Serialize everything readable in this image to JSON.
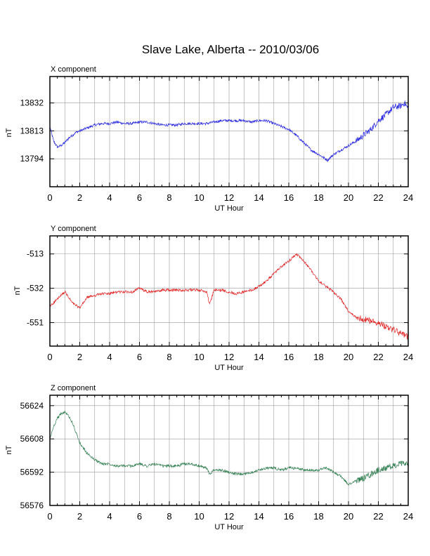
{
  "figure": {
    "title": "Slave Lake, Alberta -- 2010/03/06"
  },
  "chart_data": [
    {
      "type": "line",
      "title": "X component",
      "xlabel": "UT Hour",
      "ylabel": "nT",
      "xlim": [
        0,
        24
      ],
      "ylim": [
        13775,
        13850
      ],
      "xticks": [
        0,
        2,
        4,
        6,
        8,
        10,
        12,
        14,
        16,
        18,
        20,
        22,
        24
      ],
      "yticks": [
        13794,
        13813,
        13832
      ],
      "color": "#2020e0",
      "grid": true,
      "x": [
        0,
        0.25,
        0.5,
        0.75,
        1.0,
        1.25,
        1.5,
        1.75,
        2.0,
        2.5,
        3.0,
        3.5,
        4.0,
        4.5,
        5.0,
        5.5,
        6.0,
        6.5,
        7.0,
        7.5,
        8.0,
        8.5,
        9.0,
        9.5,
        10.0,
        10.5,
        11.0,
        11.5,
        12.0,
        12.5,
        13.0,
        13.5,
        14.0,
        14.5,
        15.0,
        15.5,
        16.0,
        16.5,
        17.0,
        17.5,
        18.0,
        18.3,
        18.6,
        19.0,
        19.5,
        20.0,
        20.5,
        21.0,
        21.5,
        22.0,
        22.5,
        23.0,
        23.5,
        23.75,
        24.0
      ],
      "y": [
        13816,
        13806,
        13802,
        13803,
        13805,
        13808,
        13810,
        13812,
        13813,
        13815,
        13817,
        13818,
        13818,
        13819,
        13818,
        13818,
        13819,
        13819,
        13818,
        13817,
        13817,
        13817,
        13818,
        13818,
        13818,
        13818,
        13819,
        13820,
        13820,
        13820,
        13820,
        13819,
        13820,
        13820,
        13818,
        13816,
        13814,
        13810,
        13805,
        13800,
        13797,
        13795,
        13793,
        13797,
        13800,
        13803,
        13806,
        13810,
        13814,
        13820,
        13824,
        13829,
        13830,
        13832,
        13828
      ]
    },
    {
      "type": "line",
      "title": "Y component",
      "xlabel": "UT Hour",
      "ylabel": "nT",
      "xlim": [
        0,
        24
      ],
      "ylim": [
        -564,
        -503
      ],
      "xticks": [
        0,
        2,
        4,
        6,
        8,
        10,
        12,
        14,
        16,
        18,
        20,
        22,
        24
      ],
      "yticks": [
        -513,
        -532,
        -551
      ],
      "color": "#e02020",
      "grid": true,
      "x": [
        0,
        0.5,
        1.0,
        1.5,
        2.0,
        2.5,
        3.0,
        3.5,
        4.0,
        4.5,
        5.0,
        5.5,
        6.0,
        6.5,
        7.0,
        7.5,
        8.0,
        8.5,
        9.0,
        9.5,
        10.0,
        10.5,
        10.7,
        11.0,
        11.5,
        12.0,
        12.5,
        13.0,
        13.5,
        14.0,
        14.5,
        15.0,
        15.5,
        16.0,
        16.5,
        17.0,
        17.5,
        18.0,
        18.5,
        19.0,
        19.5,
        20.0,
        20.5,
        21.0,
        21.5,
        22.0,
        22.5,
        23.0,
        23.5,
        24.0
      ],
      "y": [
        -542,
        -538,
        -534,
        -540,
        -543,
        -537,
        -536,
        -535,
        -535,
        -534,
        -534,
        -534,
        -532,
        -534,
        -534,
        -533,
        -533,
        -533,
        -533,
        -533,
        -533,
        -534,
        -541,
        -533,
        -533,
        -534,
        -535,
        -534,
        -533,
        -531,
        -528,
        -524,
        -520,
        -517,
        -513,
        -517,
        -522,
        -528,
        -531,
        -534,
        -538,
        -545,
        -548,
        -549,
        -550,
        -551,
        -553,
        -555,
        -557,
        -559
      ]
    },
    {
      "type": "line",
      "title": "Z component",
      "xlabel": "UT Hour",
      "ylabel": "nT",
      "xlim": [
        0,
        24
      ],
      "ylim": [
        56576,
        56629
      ],
      "xticks": [
        0,
        2,
        4,
        6,
        8,
        10,
        12,
        14,
        16,
        18,
        20,
        22,
        24
      ],
      "yticks": [
        56576,
        56592,
        56608,
        56624
      ],
      "color": "#2e7d4f",
      "grid": true,
      "x": [
        0,
        0.25,
        0.5,
        0.75,
        1.0,
        1.25,
        1.5,
        1.75,
        2.0,
        2.5,
        3.0,
        3.5,
        4.0,
        4.5,
        5.0,
        5.5,
        6.0,
        6.5,
        7.0,
        7.5,
        8.0,
        8.5,
        9.0,
        9.5,
        10.0,
        10.5,
        10.7,
        11.0,
        11.5,
        12.0,
        12.5,
        13.0,
        13.5,
        14.0,
        14.5,
        15.0,
        15.5,
        16.0,
        16.5,
        17.0,
        17.5,
        18.0,
        18.5,
        19.0,
        19.5,
        20.0,
        20.5,
        21.0,
        21.5,
        22.0,
        22.5,
        23.0,
        23.5,
        24.0
      ],
      "y": [
        56608,
        56614,
        56618,
        56620,
        56621,
        56619,
        56616,
        56611,
        56606,
        56601,
        56598,
        56596,
        56596,
        56595,
        56595,
        56595,
        56596,
        56595,
        56596,
        56595,
        56595,
        56595,
        56596,
        56596,
        56595,
        56594,
        56591,
        56593,
        56593,
        56592,
        56591,
        56591,
        56592,
        56593,
        56594,
        56594,
        56593,
        56594,
        56594,
        56593,
        56593,
        56593,
        56594,
        56592,
        56590,
        56586,
        56588,
        56589,
        56591,
        56593,
        56594,
        56595,
        56596,
        56596
      ]
    }
  ]
}
